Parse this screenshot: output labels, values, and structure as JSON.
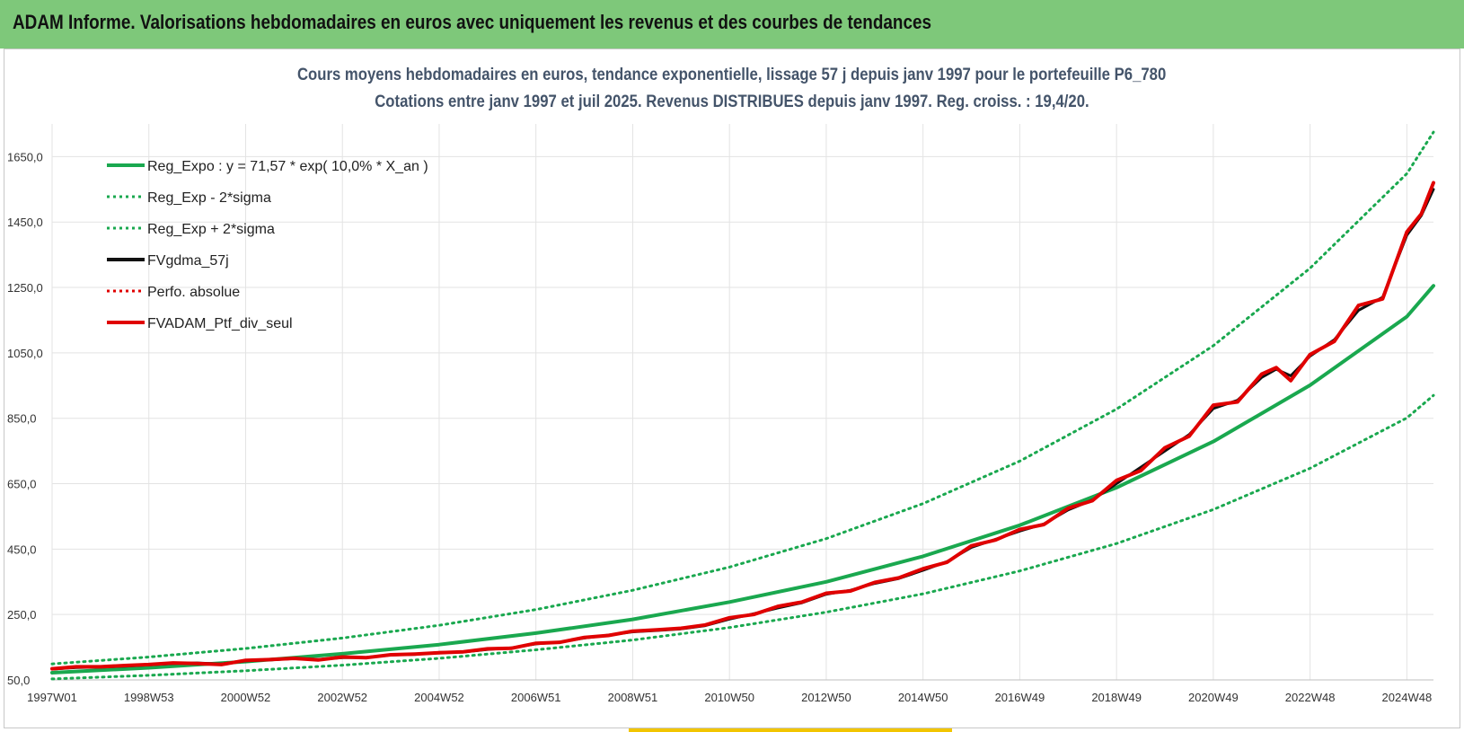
{
  "header": {
    "title": "ADAM Informe. Valorisations hebdomadaires en euros avec uniquement les revenus et des courbes de tendances"
  },
  "colors": {
    "header_bg": "#7ec87a",
    "accent": "#f2c500",
    "trend": "#1aa84f",
    "smoothed": "#111111",
    "portfolio": "#e00000",
    "title_text": "#44546a"
  },
  "chart_data": {
    "type": "line",
    "title": "Cours moyens hebdomadaires  en euros, tendance exponentielle, lissage 57 j depuis janv 1997 pour le portefeuille P6_780",
    "subtitle": "Cotations entre janv 1997 et juil 2025. Revenus DISTRIBUES depuis janv 1997. Reg. croiss. : 19,4/20.",
    "xlabel": "",
    "ylabel": "",
    "x_ticks": [
      "1997W01",
      "1998W53",
      "2000W52",
      "2002W52",
      "2004W52",
      "2006W51",
      "2008W51",
      "2010W50",
      "2012W50",
      "2014W50",
      "2016W49",
      "2018W49",
      "2020W49",
      "2022W48",
      "2024W48"
    ],
    "x_tick_years": [
      1997.0,
      1999.0,
      2001.0,
      2003.0,
      2005.0,
      2007.0,
      2009.0,
      2011.0,
      2013.0,
      2015.0,
      2017.0,
      2019.0,
      2021.0,
      2023.0,
      2025.0
    ],
    "xlim": [
      1997.0,
      2025.55
    ],
    "y_ticks": [
      "50,0",
      "250,0",
      "450,0",
      "650,0",
      "850,0",
      "1050,0",
      "1250,0",
      "1450,0",
      "1650,0"
    ],
    "ylim": [
      50,
      1750
    ],
    "grid": true,
    "legend_position": "top-left",
    "legend": [
      "Reg_Expo : y = 71,57 * exp( 10,0% *  X_an )",
      "Reg_Exp - 2*sigma",
      "Reg_Exp + 2*sigma",
      "FVgdma_57j",
      "Perfo. absolue",
      "FVADAM_Ptf_div_seul"
    ],
    "series": [
      {
        "name": "Reg_Expo : y = 71,57 * exp( 10,0% *  X_an )",
        "style": "solid",
        "x": [
          1997.0,
          1999.0,
          2001.0,
          2003.0,
          2005.0,
          2007.0,
          2009.0,
          2011.0,
          2013.0,
          2015.0,
          2017.0,
          2019.0,
          2021.0,
          2023.0,
          2025.0,
          2025.55
        ],
        "values": [
          72,
          87,
          106,
          130,
          158,
          193,
          235,
          288,
          350,
          428,
          523,
          638,
          779,
          951,
          1161,
          1255
        ]
      },
      {
        "name": "Reg_Exp - 2*sigma",
        "style": "dotted",
        "x": [
          1997.0,
          1999.0,
          2001.0,
          2003.0,
          2005.0,
          2007.0,
          2009.0,
          2011.0,
          2013.0,
          2015.0,
          2017.0,
          2019.0,
          2021.0,
          2023.0,
          2025.0,
          2025.55
        ],
        "values": [
          53,
          64,
          78,
          95,
          116,
          142,
          172,
          210,
          257,
          313,
          383,
          467,
          571,
          697,
          851,
          920
        ]
      },
      {
        "name": "Reg_Exp + 2*sigma",
        "style": "dotted",
        "x": [
          1997.0,
          1999.0,
          2001.0,
          2003.0,
          2005.0,
          2007.0,
          2009.0,
          2011.0,
          2013.0,
          2015.0,
          2017.0,
          2019.0,
          2021.0,
          2023.0,
          2025.0,
          2025.55
        ],
        "values": [
          99,
          120,
          146,
          178,
          217,
          265,
          324,
          395,
          482,
          589,
          719,
          878,
          1072,
          1309,
          1598,
          1725
        ]
      },
      {
        "name": "FVgdma_57j",
        "style": "solid",
        "x": [
          1997.0,
          1997.5,
          1998.0,
          1998.5,
          1999.0,
          1999.5,
          2000.0,
          2000.5,
          2001.0,
          2001.5,
          2002.0,
          2002.5,
          2003.0,
          2003.5,
          2004.0,
          2004.5,
          2005.0,
          2005.5,
          2006.0,
          2006.5,
          2007.0,
          2007.5,
          2008.0,
          2008.5,
          2009.0,
          2009.5,
          2010.0,
          2010.5,
          2011.0,
          2011.5,
          2012.0,
          2012.5,
          2013.0,
          2013.5,
          2014.0,
          2014.5,
          2015.0,
          2015.5,
          2016.0,
          2016.5,
          2017.0,
          2017.5,
          2018.0,
          2018.5,
          2019.0,
          2019.5,
          2020.0,
          2020.5,
          2021.0,
          2021.5,
          2022.0,
          2022.3,
          2022.6,
          2023.0,
          2023.5,
          2024.0,
          2024.5,
          2025.0,
          2025.3,
          2025.55
        ],
        "values": [
          83,
          88,
          89,
          92,
          96,
          100,
          102,
          99,
          108,
          111,
          115,
          113,
          118,
          119,
          126,
          128,
          134,
          135,
          143,
          148,
          160,
          166,
          178,
          187,
          197,
          201,
          206,
          216,
          236,
          252,
          270,
          286,
          312,
          324,
          345,
          360,
          385,
          412,
          455,
          480,
          505,
          527,
          570,
          600,
          650,
          700,
          750,
          800,
          880,
          905,
          975,
          1000,
          980,
          1040,
          1090,
          1180,
          1220,
          1410,
          1470,
          1550
        ]
      },
      {
        "name": "Perfo. absolue",
        "style": "dotted",
        "x": [
          1997.0,
          1997.5,
          1998.0,
          1998.5,
          1999.0,
          1999.5,
          2000.0,
          2000.5,
          2001.0,
          2001.5,
          2002.0,
          2002.5,
          2003.0,
          2003.5,
          2004.0,
          2004.5,
          2005.0,
          2005.5,
          2006.0,
          2006.5,
          2007.0,
          2007.5,
          2008.0,
          2008.5,
          2009.0,
          2009.5,
          2010.0,
          2010.5,
          2011.0,
          2011.5,
          2012.0,
          2012.5,
          2013.0,
          2013.5,
          2014.0,
          2014.5,
          2015.0,
          2015.5,
          2016.0,
          2016.5,
          2017.0,
          2017.5,
          2018.0,
          2018.5,
          2019.0,
          2019.5,
          2020.0,
          2020.5,
          2021.0,
          2021.5,
          2022.0,
          2022.3,
          2022.6,
          2023.0,
          2023.5,
          2024.0,
          2024.5,
          2025.0,
          2025.3,
          2025.55
        ],
        "values": [
          83,
          88,
          89,
          92,
          96,
          100,
          102,
          99,
          108,
          111,
          115,
          113,
          118,
          119,
          126,
          128,
          134,
          135,
          143,
          148,
          160,
          166,
          178,
          187,
          197,
          201,
          206,
          216,
          236,
          252,
          270,
          286,
          312,
          324,
          345,
          360,
          385,
          412,
          455,
          480,
          505,
          527,
          570,
          600,
          650,
          700,
          750,
          800,
          880,
          905,
          975,
          1000,
          980,
          1040,
          1090,
          1180,
          1220,
          1410,
          1470,
          1550
        ]
      },
      {
        "name": "FVADAM_Ptf_div_seul",
        "style": "solid",
        "x": [
          1997.0,
          1997.5,
          1998.0,
          1998.5,
          1999.0,
          1999.5,
          2000.0,
          2000.5,
          2001.0,
          2001.5,
          2002.0,
          2002.5,
          2003.0,
          2003.5,
          2004.0,
          2004.5,
          2005.0,
          2005.5,
          2006.0,
          2006.5,
          2007.0,
          2007.5,
          2008.0,
          2008.5,
          2009.0,
          2009.5,
          2010.0,
          2010.5,
          2011.0,
          2011.5,
          2012.0,
          2012.5,
          2013.0,
          2013.5,
          2014.0,
          2014.5,
          2015.0,
          2015.5,
          2016.0,
          2016.5,
          2017.0,
          2017.5,
          2018.0,
          2018.5,
          2019.0,
          2019.5,
          2020.0,
          2020.5,
          2021.0,
          2021.5,
          2022.0,
          2022.3,
          2022.6,
          2023.0,
          2023.5,
          2024.0,
          2024.5,
          2025.0,
          2025.3,
          2025.55
        ],
        "values": [
          84,
          90,
          90,
          94,
          97,
          102,
          100,
          97,
          110,
          112,
          116,
          111,
          120,
          118,
          127,
          129,
          133,
          136,
          145,
          147,
          162,
          165,
          180,
          186,
          199,
          203,
          208,
          218,
          240,
          250,
          275,
          288,
          315,
          322,
          348,
          362,
          390,
          410,
          460,
          478,
          510,
          525,
          575,
          598,
          660,
          690,
          760,
          795,
          890,
          900,
          985,
          1005,
          965,
          1045,
          1085,
          1195,
          1215,
          1420,
          1475,
          1570
        ]
      }
    ]
  }
}
